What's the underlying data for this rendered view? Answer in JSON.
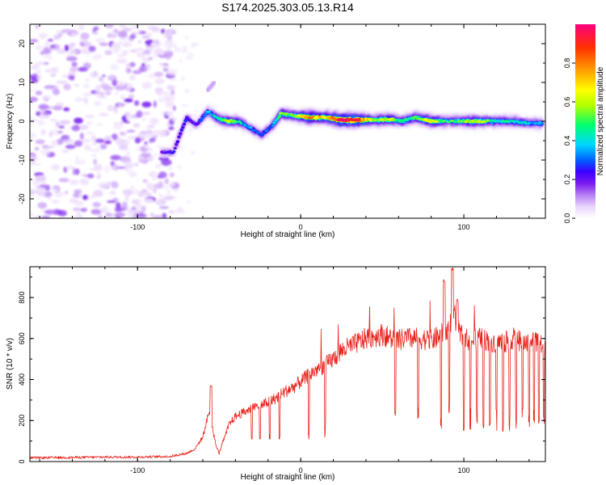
{
  "title": "S174.2025.303.05.13.R14",
  "chart_data": [
    {
      "type": "heatmap",
      "panel": "spectrogram",
      "xlabel": "Height of straight line (km)",
      "ylabel": "Frequency (Hz)",
      "xlim": [
        -166,
        150
      ],
      "ylim": [
        -25,
        25
      ],
      "xticks": [
        -100,
        0,
        100
      ],
      "yticks": [
        -20,
        -10,
        0,
        10,
        20
      ],
      "colorbar": {
        "label": "Normalized spectral amplitude",
        "range": [
          0,
          1
        ],
        "ticks": [
          0.0,
          0.2,
          0.4,
          0.6,
          0.8
        ],
        "tick_labels": [
          "0.0",
          "0.2",
          "0.4",
          "0.6",
          "0.8"
        ],
        "colormap": [
          "#ffffff",
          "#e9d5fb",
          "#b57ff5",
          "#7a1bef",
          "#3a00ff",
          "#0060ff",
          "#00d8ff",
          "#00ff70",
          "#b0ff00",
          "#ffff00",
          "#ffa000",
          "#ff3000",
          "#ff0080"
        ]
      },
      "noise_region_x": [
        -166,
        -83
      ],
      "ridge": [
        {
          "x": -85,
          "y": -8,
          "amp": 0.3
        },
        {
          "x": -78,
          "y": -8,
          "amp": 0.32
        },
        {
          "x": -70,
          "y": 1,
          "amp": 0.35
        },
        {
          "x": -64,
          "y": -1,
          "amp": 0.3
        },
        {
          "x": -57,
          "y": 2.5,
          "amp": 0.45
        },
        {
          "x": -50,
          "y": 0.5,
          "amp": 0.55
        },
        {
          "x": -44,
          "y": 0,
          "amp": 0.7
        },
        {
          "x": -38,
          "y": 0,
          "amp": 0.55
        },
        {
          "x": -32,
          "y": -1.5,
          "amp": 0.45
        },
        {
          "x": -24,
          "y": -3.5,
          "amp": 0.4
        },
        {
          "x": -17,
          "y": -1,
          "amp": 0.45
        },
        {
          "x": -12,
          "y": 2,
          "amp": 0.65
        },
        {
          "x": -5,
          "y": 1.5,
          "amp": 0.6
        },
        {
          "x": 5,
          "y": 1,
          "amp": 0.85
        },
        {
          "x": 15,
          "y": 1,
          "amp": 0.75
        },
        {
          "x": 25,
          "y": 0.3,
          "amp": 0.98
        },
        {
          "x": 35,
          "y": 0.3,
          "amp": 0.95
        },
        {
          "x": 45,
          "y": 0.3,
          "amp": 0.65
        },
        {
          "x": 55,
          "y": 0.5,
          "amp": 0.7
        },
        {
          "x": 62,
          "y": 0,
          "amp": 0.55
        },
        {
          "x": 70,
          "y": 1,
          "amp": 0.6
        },
        {
          "x": 80,
          "y": 0,
          "amp": 0.75
        },
        {
          "x": 90,
          "y": 0,
          "amp": 0.55
        },
        {
          "x": 100,
          "y": 0,
          "amp": 0.65
        },
        {
          "x": 110,
          "y": 0,
          "amp": 0.7
        },
        {
          "x": 120,
          "y": 0,
          "amp": 0.55
        },
        {
          "x": 130,
          "y": 0,
          "amp": 0.55
        },
        {
          "x": 140,
          "y": -0.5,
          "amp": 0.5
        },
        {
          "x": 148,
          "y": -0.5,
          "amp": 0.45
        }
      ],
      "secondary_streak": {
        "x": [
          -57,
          -53
        ],
        "y": [
          8,
          10
        ]
      }
    },
    {
      "type": "line",
      "panel": "snr",
      "xlabel": "Height of straight line (km)",
      "ylabel": "SNR (10 * v/v)",
      "xlim": [
        -166,
        150
      ],
      "ylim": [
        0,
        950
      ],
      "xticks": [
        -100,
        0,
        100
      ],
      "yticks": [
        0,
        200,
        400,
        600,
        800
      ],
      "color": "#e8241c",
      "series": [
        {
          "name": "SNR",
          "x": [
            -166,
            -140,
            -120,
            -100,
            -80,
            -70,
            -65,
            -60,
            -56,
            -54,
            -52,
            -50,
            -48,
            -46,
            -44,
            -40,
            -35,
            -30,
            -25,
            -20,
            -15,
            -10,
            -5,
            0,
            5,
            10,
            15,
            20,
            25,
            30,
            35,
            40,
            45,
            50,
            55,
            60,
            65,
            70,
            75,
            80,
            85,
            90,
            94,
            96,
            100,
            105,
            110,
            115,
            120,
            125,
            130,
            135,
            140,
            145,
            150
          ],
          "y": [
            18,
            20,
            22,
            22,
            25,
            40,
            60,
            120,
            250,
            160,
            80,
            40,
            90,
            130,
            180,
            220,
            240,
            260,
            270,
            290,
            310,
            340,
            360,
            390,
            420,
            450,
            470,
            500,
            540,
            560,
            580,
            600,
            610,
            620,
            600,
            590,
            600,
            600,
            600,
            590,
            610,
            640,
            720,
            640,
            600,
            590,
            600,
            590,
            580,
            580,
            600,
            590,
            580,
            590,
            540
          ]
        }
      ],
      "spikes_up": [
        {
          "x": -55,
          "y": 370
        },
        {
          "x": 88,
          "y": 890
        },
        {
          "x": 93,
          "y": 950
        },
        {
          "x": 96,
          "y": 800
        }
      ],
      "dips_down": [
        -30,
        -25,
        -19,
        -13,
        5,
        15,
        58,
        72,
        86,
        91,
        100,
        104,
        108,
        112,
        116,
        120,
        124,
        128,
        132,
        136,
        140,
        143,
        146,
        149
      ]
    }
  ]
}
